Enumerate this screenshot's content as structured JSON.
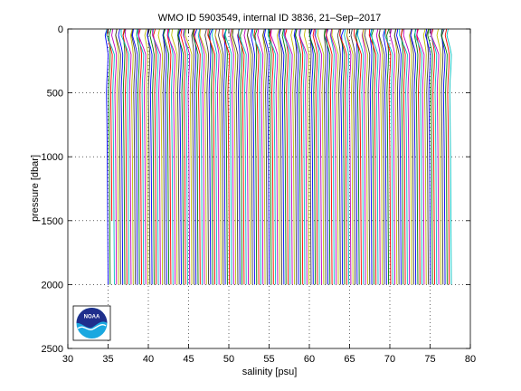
{
  "chart_data": {
    "type": "line",
    "title": "WMO ID 5903549, internal ID 3836, 21–Sep–2017",
    "xlabel": "salinity [psu]",
    "ylabel": "pressure [dbar]",
    "xlim": [
      30,
      80
    ],
    "ylim": [
      0,
      2500
    ],
    "y_reversed": true,
    "grid": true,
    "grid_style": "dotted",
    "xticks": [
      30,
      35,
      40,
      45,
      50,
      55,
      60,
      65,
      70,
      75,
      80
    ],
    "yticks": [
      0,
      500,
      1000,
      1500,
      2000,
      2500
    ],
    "profile_count": 165,
    "first_profile_offset_psu": 34.6,
    "profile_offset_step_psu": 0.26,
    "profile_pressure_levels": [
      0,
      50,
      100,
      150,
      200,
      300,
      400,
      500,
      700,
      1000,
      1500,
      2000
    ],
    "profile_salinity_anomalies": [
      0.0,
      -0.15,
      0.05,
      0.25,
      0.4,
      0.35,
      0.25,
      0.2,
      0.25,
      0.3,
      0.35,
      0.4
    ],
    "profile_max_pressure": 2000,
    "short_profiles": [
      {
        "index": 2,
        "max_pressure": 1500
      }
    ],
    "series_colors": [
      "#0000ff",
      "#008000",
      "#ff0000",
      "#00bfbf",
      "#bf00bf",
      "#bfbf00",
      "#404040"
    ]
  },
  "logo": {
    "name": "noaa-logo",
    "text": "NOAA"
  }
}
